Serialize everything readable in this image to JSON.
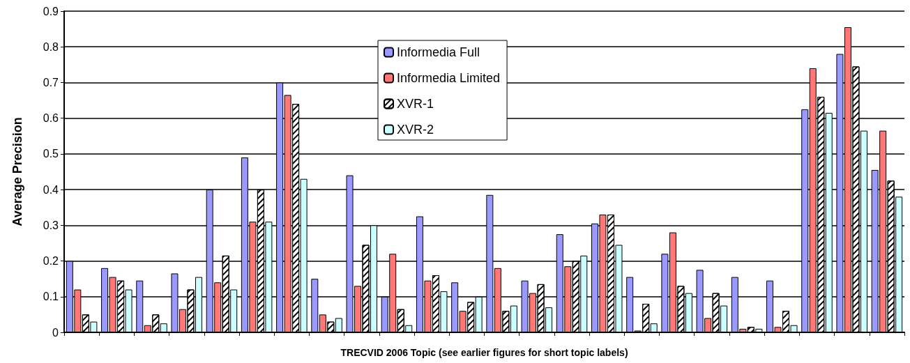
{
  "chart_data": {
    "type": "bar",
    "xlabel": "TRECVID 2006 Topic (see earlier figures for short topic labels)",
    "ylabel": "Average Precision",
    "categories": [
      null,
      null,
      null,
      null,
      null,
      null,
      null,
      null,
      null,
      null,
      null,
      null,
      null,
      null,
      null,
      null,
      null,
      null,
      null,
      null,
      null,
      null,
      null,
      null
    ],
    "series": [
      {
        "name": "Informedia Full",
        "color": "#9999ff",
        "values": [
          0.2,
          0.18,
          0.145,
          0.165,
          0.4,
          0.49,
          0.7,
          0.15,
          0.44,
          0.1,
          0.325,
          0.14,
          0.385,
          0.145,
          0.275,
          0.305,
          0.155,
          0.22,
          0.175,
          0.155,
          0.145,
          0.625,
          0.78,
          0.455
        ]
      },
      {
        "name": "Informedia Limited",
        "color": "#ff7777",
        "values": [
          0.12,
          0.155,
          0.02,
          0.065,
          0.14,
          0.31,
          0.665,
          0.05,
          0.13,
          0.22,
          0.145,
          0.06,
          0.18,
          0.11,
          0.185,
          0.33,
          0.005,
          0.28,
          0.04,
          0.01,
          0.015,
          0.74,
          0.855,
          0.565
        ]
      },
      {
        "name": "XVR-1",
        "color": "#ffffff",
        "values": [
          0.05,
          0.145,
          0.05,
          0.12,
          0.215,
          0.4,
          0.64,
          0.03,
          0.245,
          0.065,
          0.16,
          0.085,
          0.06,
          0.135,
          0.2,
          0.33,
          0.08,
          0.13,
          0.11,
          0.015,
          0.06,
          0.66,
          0.745,
          0.425
        ]
      },
      {
        "name": "XVR-2",
        "color": "#ccffff",
        "values": [
          0.03,
          0.12,
          0.025,
          0.155,
          0.12,
          0.31,
          0.43,
          0.04,
          0.3,
          0.02,
          0.115,
          0.1,
          0.075,
          0.07,
          0.215,
          0.245,
          0.025,
          0.11,
          0.075,
          0.01,
          0.02,
          0.615,
          0.565,
          0.38
        ]
      }
    ],
    "ylim": [
      0,
      0.9
    ],
    "yticks": [
      0,
      0.1,
      0.2,
      0.3,
      0.4,
      0.5,
      0.6,
      0.7,
      0.8,
      0.9
    ],
    "grid": "y",
    "legend": "top"
  }
}
